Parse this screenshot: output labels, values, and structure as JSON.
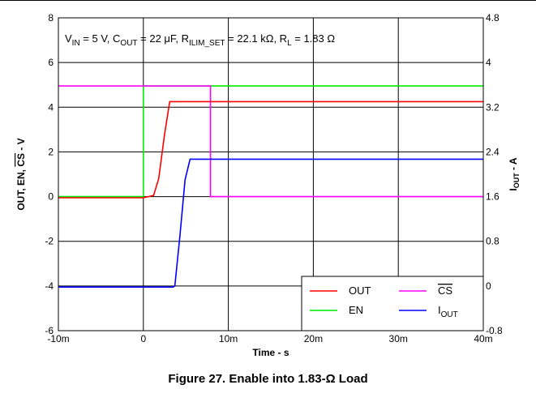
{
  "caption": "Figure 27. Enable into 1.83-Ω Load",
  "chart_data": {
    "type": "line",
    "annotation": {
      "vin": "V",
      "vin_sub": "IN",
      "vin_val": " = 5 V, C",
      "cout_sub": "OUT",
      "cout_val": " = 22 μF, R",
      "rilim_sub": "ILIM_SET",
      "rilim_val": " = 22.1 kΩ, R",
      "rl_sub": "L",
      "rl_val": " = 1.83 Ω"
    },
    "xlabel": "Time - s",
    "ylabel_left": {
      "pre": "OUT, EN, ",
      "overline": "CS",
      "post": " - V"
    },
    "ylabel_right": {
      "main": "I",
      "sub": "OUT",
      "post": " - A"
    },
    "xlim": [
      -0.01,
      0.04
    ],
    "ylim_left": [
      -6,
      8
    ],
    "ylim_right": [
      -0.8,
      4.8
    ],
    "x_ticks": [
      {
        "value": -0.01,
        "label": "-10m"
      },
      {
        "value": 0,
        "label": "0"
      },
      {
        "value": 0.01,
        "label": "10m"
      },
      {
        "value": 0.02,
        "label": "20m"
      },
      {
        "value": 0.03,
        "label": "30m"
      },
      {
        "value": 0.04,
        "label": "40m"
      }
    ],
    "y_left_ticks": [
      {
        "value": -6,
        "label": "-6"
      },
      {
        "value": -4,
        "label": "-4"
      },
      {
        "value": -2,
        "label": "-2"
      },
      {
        "value": 0,
        "label": "0"
      },
      {
        "value": 2,
        "label": "2"
      },
      {
        "value": 4,
        "label": "4"
      },
      {
        "value": 6,
        "label": "6"
      },
      {
        "value": 8,
        "label": "8"
      }
    ],
    "y_right_ticks": [
      {
        "value": -0.8,
        "label": "-0.8"
      },
      {
        "value": 0,
        "label": "0"
      },
      {
        "value": 0.8,
        "label": "0.8"
      },
      {
        "value": 1.6,
        "label": "1.6"
      },
      {
        "value": 2.4,
        "label": "2.4"
      },
      {
        "value": 3.2,
        "label": "3.2"
      },
      {
        "value": 4,
        "label": "4"
      },
      {
        "value": 4.8,
        "label": "4.8"
      }
    ],
    "grid": true,
    "legend_position": "bottom-right",
    "series": [
      {
        "name": "OUT",
        "name_overline": false,
        "name_sub": "",
        "color": "#ff0000",
        "axis": "left",
        "points": [
          [
            -0.01,
            -0.05
          ],
          [
            0.0,
            -0.05
          ],
          [
            0.0012,
            0.05
          ],
          [
            0.0018,
            0.8
          ],
          [
            0.0025,
            2.8
          ],
          [
            0.0031,
            4.25
          ],
          [
            0.04,
            4.25
          ]
        ]
      },
      {
        "name": "EN",
        "name_overline": false,
        "name_sub": "",
        "color": "#00ee00",
        "axis": "left",
        "points": [
          [
            -0.01,
            0.0
          ],
          [
            0.0,
            0.0
          ],
          [
            0.0,
            4.95
          ],
          [
            0.04,
            4.95
          ]
        ]
      },
      {
        "name": "CS",
        "name_overline": true,
        "name_sub": "",
        "color": "#ff00ff",
        "axis": "left",
        "points": [
          [
            -0.01,
            4.95
          ],
          [
            0.0079,
            4.95
          ],
          [
            0.0079,
            0.0
          ],
          [
            0.04,
            0.0
          ]
        ]
      },
      {
        "name": "I",
        "name_overline": false,
        "name_sub": "OUT",
        "color": "#0000ff",
        "axis": "right",
        "points": [
          [
            -0.01,
            -0.02
          ],
          [
            0.0035,
            -0.02
          ],
          [
            0.0037,
            0.0
          ],
          [
            0.0043,
            0.9
          ],
          [
            0.0049,
            1.9
          ],
          [
            0.0055,
            2.27
          ],
          [
            0.04,
            2.27
          ]
        ]
      }
    ]
  }
}
